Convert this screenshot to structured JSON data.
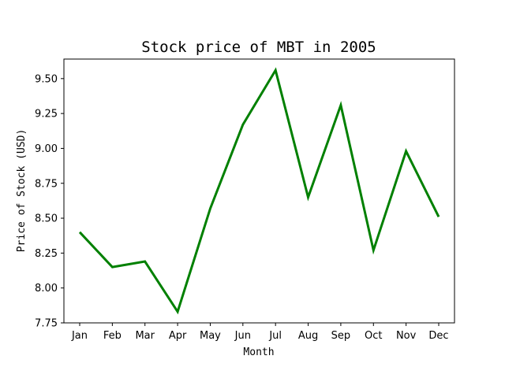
{
  "chart_data": {
    "type": "line",
    "title": "Stock price of MBT in 2005",
    "xlabel": "Month",
    "ylabel": "Price of Stock (USD)",
    "categories": [
      "Jan",
      "Feb",
      "Mar",
      "Apr",
      "May",
      "Jun",
      "Jul",
      "Aug",
      "Sep",
      "Oct",
      "Nov",
      "Dec"
    ],
    "series": [
      {
        "values": [
          8.4,
          8.15,
          8.19,
          7.83,
          8.57,
          9.17,
          9.56,
          8.65,
          9.31,
          8.27,
          8.98,
          8.51
        ]
      }
    ],
    "ylim": [
      7.75,
      9.64
    ],
    "yticks": [
      7.75,
      8.0,
      8.25,
      8.5,
      8.75,
      9.0,
      9.25,
      9.5
    ],
    "ytick_labels": [
      "7.75",
      "8.00",
      "8.25",
      "8.50",
      "8.75",
      "9.00",
      "9.25",
      "9.50"
    ],
    "grid": false,
    "line_color": "#008000"
  }
}
